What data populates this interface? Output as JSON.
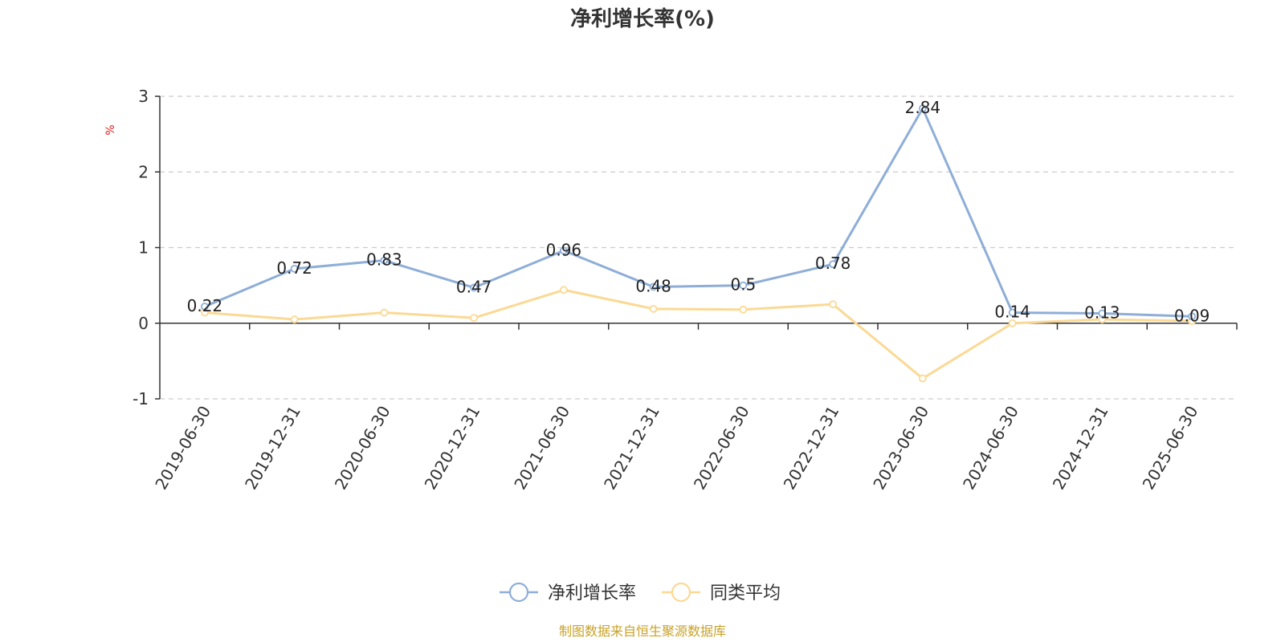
{
  "chart_data": {
    "type": "line",
    "title": "净利增长率(%)",
    "ylabel": "%",
    "ylim": [
      -1,
      3
    ],
    "yticks": [
      -1,
      0,
      1,
      2,
      3
    ],
    "grid": true,
    "legend_position": "bottom-center",
    "categories": [
      "2019-06-30",
      "2019-12-31",
      "2020-06-30",
      "2020-12-31",
      "2021-06-30",
      "2021-12-31",
      "2022-06-30",
      "2022-12-31",
      "2023-06-30",
      "2024-06-30",
      "2024-12-31",
      "2025-06-30"
    ],
    "series": [
      {
        "name": "净利增长率",
        "color": "#8eaed8",
        "values": [
          0.22,
          0.72,
          0.83,
          0.47,
          0.96,
          0.48,
          0.5,
          0.78,
          2.84,
          0.14,
          0.13,
          0.09
        ],
        "data_labels": [
          "0.22",
          "0.72",
          "0.83",
          "0.47",
          "0.96",
          "0.48",
          "0.5",
          "0.78",
          "2.84",
          "0.14",
          "0.13",
          "0.09"
        ]
      },
      {
        "name": "同类平均",
        "color": "#fbd994",
        "values": [
          0.14,
          0.05,
          0.14,
          0.07,
          0.44,
          0.19,
          0.18,
          0.25,
          -0.73,
          0.0,
          0.05,
          0.03
        ]
      }
    ],
    "source": "制图数据来自恒生聚源数据库",
    "colors": {
      "unit_label": "#e02020",
      "source": "#c9a227",
      "axis": "#333333",
      "grid": "#cccccc"
    }
  }
}
